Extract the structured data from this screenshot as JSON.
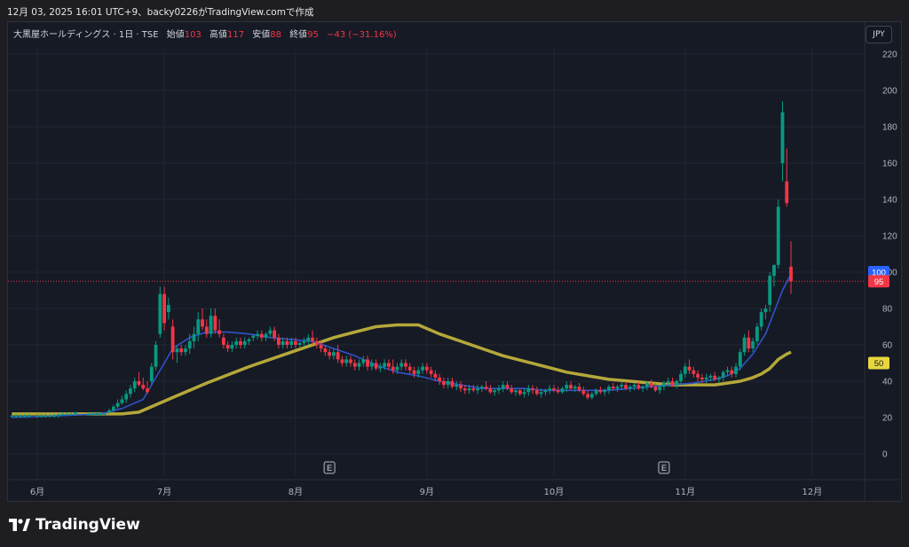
{
  "caption": "12月 03, 2025 16:01 UTC+9、backy0226がTradingView.comで作成",
  "legend": {
    "symbol": "大黒屋ホールディングス · 1日 · TSE",
    "open_label": "始値",
    "open": "103",
    "high_label": "高値",
    "high": "117",
    "low_label": "安値",
    "low": "88",
    "close_label": "終値",
    "close": "95",
    "change": "−43 (−31.16%)"
  },
  "currency_button": "JPY",
  "brand": {
    "name": "TradingView",
    "icon": "tradingview-logo-icon"
  },
  "colors": {
    "up": "#089981",
    "down": "#f23645",
    "ma_short": "#2f52c9",
    "ma_long": "#b5a83a",
    "background": "#161a25"
  },
  "chart_data": {
    "type": "candlestick",
    "y_axis": {
      "min": 0,
      "max": 220,
      "ticks": [
        "0",
        "20",
        "40",
        "60",
        "80",
        "100",
        "120",
        "140",
        "160",
        "180",
        "200",
        "220"
      ]
    },
    "x_axis": {
      "ticks": [
        {
          "label": "6月",
          "day": 0
        },
        {
          "label": "7月",
          "day": 30
        },
        {
          "label": "8月",
          "day": 61
        },
        {
          "label": "9月",
          "day": 92
        },
        {
          "label": "10月",
          "day": 122
        },
        {
          "label": "11月",
          "day": 153
        },
        {
          "label": "12月",
          "day": 183
        }
      ]
    },
    "last_price_line": 95,
    "price_labels": [
      {
        "value": "100",
        "color": "#2962ff"
      },
      {
        "value": "95",
        "color": "#f23645"
      },
      {
        "value": "50",
        "color": "#e8d640"
      }
    ],
    "earnings_markers": [
      {
        "label": "E",
        "day": 69
      },
      {
        "label": "E",
        "day": 148
      }
    ],
    "candles": [
      [
        -6,
        21,
        22,
        20,
        21
      ],
      [
        -5,
        21,
        22,
        20,
        21
      ],
      [
        -4,
        21,
        22,
        20,
        21
      ],
      [
        -3,
        21,
        22,
        20,
        21
      ],
      [
        -2,
        21,
        22,
        20,
        21
      ],
      [
        0,
        21,
        22,
        20,
        21
      ],
      [
        1,
        21,
        22,
        20,
        21
      ],
      [
        2,
        21,
        22,
        20,
        21
      ],
      [
        3,
        21,
        22,
        20,
        21
      ],
      [
        4,
        21,
        22,
        20,
        21
      ],
      [
        5,
        21,
        22,
        20,
        22
      ],
      [
        6,
        22,
        23,
        21,
        22
      ],
      [
        7,
        22,
        23,
        21,
        22
      ],
      [
        8,
        22,
        23,
        21,
        22
      ],
      [
        9,
        22,
        23,
        21,
        23
      ],
      [
        12,
        22,
        23,
        21,
        22
      ],
      [
        13,
        22,
        23,
        21,
        22
      ],
      [
        14,
        22,
        23,
        21,
        22
      ],
      [
        15,
        22,
        23,
        21,
        22
      ],
      [
        16,
        22,
        23,
        21,
        22
      ],
      [
        17,
        23,
        25,
        22,
        24
      ],
      [
        18,
        24,
        27,
        23,
        26
      ],
      [
        19,
        26,
        30,
        25,
        28
      ],
      [
        20,
        28,
        32,
        27,
        30
      ],
      [
        21,
        30,
        35,
        28,
        33
      ],
      [
        22,
        33,
        38,
        31,
        36
      ],
      [
        23,
        36,
        42,
        34,
        40
      ],
      [
        24,
        40,
        45,
        37,
        38
      ],
      [
        25,
        38,
        42,
        35,
        36
      ],
      [
        26,
        36,
        40,
        33,
        34
      ],
      [
        27,
        40,
        50,
        38,
        48
      ],
      [
        28,
        48,
        62,
        46,
        60
      ],
      [
        29,
        66,
        92,
        64,
        88
      ],
      [
        30,
        88,
        92,
        68,
        72
      ],
      [
        31,
        78,
        86,
        74,
        82
      ],
      [
        32,
        70,
        74,
        52,
        56
      ],
      [
        33,
        56,
        60,
        50,
        58
      ],
      [
        34,
        58,
        60,
        54,
        56
      ],
      [
        35,
        56,
        60,
        54,
        58
      ],
      [
        36,
        58,
        66,
        55,
        62
      ],
      [
        37,
        62,
        70,
        58,
        66
      ],
      [
        38,
        66,
        78,
        62,
        74
      ],
      [
        39,
        74,
        80,
        68,
        70
      ],
      [
        40,
        70,
        74,
        64,
        66
      ],
      [
        41,
        66,
        80,
        64,
        76
      ],
      [
        42,
        76,
        80,
        66,
        68
      ],
      [
        43,
        68,
        74,
        64,
        66
      ],
      [
        44,
        64,
        66,
        58,
        60
      ],
      [
        45,
        60,
        62,
        56,
        58
      ],
      [
        46,
        58,
        62,
        56,
        60
      ],
      [
        47,
        60,
        64,
        58,
        62
      ],
      [
        48,
        62,
        64,
        58,
        60
      ],
      [
        49,
        60,
        64,
        58,
        62
      ],
      [
        50,
        62,
        64,
        60,
        63
      ],
      [
        51,
        64,
        66,
        62,
        65
      ],
      [
        52,
        65,
        68,
        63,
        66
      ],
      [
        53,
        66,
        68,
        62,
        64
      ],
      [
        54,
        64,
        67,
        62,
        66
      ],
      [
        55,
        66,
        70,
        64,
        68
      ],
      [
        56,
        68,
        70,
        62,
        64
      ],
      [
        57,
        64,
        66,
        58,
        60
      ],
      [
        58,
        60,
        64,
        58,
        62
      ],
      [
        59,
        62,
        64,
        58,
        60
      ],
      [
        60,
        60,
        64,
        58,
        62
      ],
      [
        61,
        62,
        64,
        58,
        60
      ],
      [
        62,
        60,
        62,
        58,
        61
      ],
      [
        63,
        61,
        64,
        59,
        62
      ],
      [
        64,
        62,
        66,
        60,
        64
      ],
      [
        65,
        64,
        68,
        60,
        62
      ],
      [
        66,
        62,
        64,
        58,
        60
      ],
      [
        67,
        60,
        62,
        56,
        58
      ],
      [
        68,
        58,
        60,
        54,
        56
      ],
      [
        69,
        56,
        58,
        52,
        54
      ],
      [
        70,
        54,
        58,
        52,
        56
      ],
      [
        71,
        56,
        60,
        50,
        52
      ],
      [
        72,
        52,
        54,
        48,
        50
      ],
      [
        73,
        50,
        54,
        48,
        52
      ],
      [
        74,
        52,
        54,
        48,
        50
      ],
      [
        75,
        50,
        52,
        46,
        48
      ],
      [
        76,
        48,
        52,
        46,
        50
      ],
      [
        77,
        50,
        54,
        48,
        52
      ],
      [
        78,
        52,
        54,
        46,
        48
      ],
      [
        79,
        48,
        52,
        46,
        50
      ],
      [
        80,
        50,
        52,
        46,
        47
      ],
      [
        81,
        47,
        50,
        45,
        48
      ],
      [
        82,
        48,
        52,
        46,
        50
      ],
      [
        83,
        50,
        52,
        46,
        48
      ],
      [
        84,
        48,
        52,
        44,
        46
      ],
      [
        85,
        46,
        50,
        44,
        48
      ],
      [
        86,
        48,
        52,
        46,
        50
      ],
      [
        87,
        50,
        52,
        46,
        48
      ],
      [
        88,
        48,
        50,
        44,
        46
      ],
      [
        89,
        46,
        48,
        42,
        44
      ],
      [
        90,
        44,
        48,
        42,
        46
      ],
      [
        91,
        46,
        50,
        44,
        48
      ],
      [
        92,
        48,
        50,
        44,
        46
      ],
      [
        93,
        46,
        48,
        42,
        44
      ],
      [
        94,
        44,
        46,
        40,
        42
      ],
      [
        95,
        42,
        44,
        38,
        40
      ],
      [
        96,
        40,
        42,
        36,
        38
      ],
      [
        97,
        38,
        42,
        36,
        40
      ],
      [
        98,
        40,
        42,
        36,
        37
      ],
      [
        99,
        37,
        40,
        35,
        38
      ],
      [
        100,
        38,
        40,
        34,
        36
      ],
      [
        101,
        36,
        38,
        33,
        35
      ],
      [
        102,
        35,
        38,
        33,
        36
      ],
      [
        103,
        36,
        38,
        34,
        35
      ],
      [
        104,
        35,
        38,
        33,
        36
      ],
      [
        105,
        36,
        38,
        34,
        37
      ],
      [
        106,
        37,
        40,
        35,
        36
      ],
      [
        107,
        36,
        38,
        33,
        34
      ],
      [
        108,
        34,
        36,
        32,
        35
      ],
      [
        109,
        35,
        38,
        33,
        36
      ],
      [
        110,
        36,
        40,
        34,
        38
      ],
      [
        111,
        38,
        40,
        35,
        36
      ],
      [
        112,
        36,
        38,
        33,
        34
      ],
      [
        113,
        34,
        36,
        32,
        35
      ],
      [
        114,
        35,
        36,
        32,
        33
      ],
      [
        115,
        33,
        36,
        31,
        34
      ],
      [
        116,
        34,
        38,
        32,
        36
      ],
      [
        117,
        36,
        38,
        33,
        35
      ],
      [
        118,
        35,
        37,
        32,
        33
      ],
      [
        119,
        33,
        36,
        31,
        34
      ],
      [
        120,
        34,
        36,
        32,
        35
      ],
      [
        121,
        35,
        38,
        33,
        36
      ],
      [
        122,
        36,
        38,
        34,
        35
      ],
      [
        123,
        35,
        37,
        33,
        34
      ],
      [
        124,
        34,
        37,
        33,
        36
      ],
      [
        125,
        36,
        40,
        34,
        38
      ],
      [
        126,
        38,
        40,
        35,
        36
      ],
      [
        127,
        36,
        38,
        34,
        37
      ],
      [
        128,
        37,
        39,
        34,
        35
      ],
      [
        129,
        35,
        37,
        32,
        33
      ],
      [
        130,
        33,
        35,
        30,
        31
      ],
      [
        131,
        31,
        34,
        30,
        33
      ],
      [
        132,
        33,
        36,
        32,
        35
      ],
      [
        133,
        35,
        37,
        33,
        34
      ],
      [
        134,
        34,
        36,
        32,
        35
      ],
      [
        135,
        35,
        38,
        33,
        37
      ],
      [
        136,
        37,
        39,
        35,
        36
      ],
      [
        137,
        36,
        38,
        34,
        37
      ],
      [
        138,
        37,
        40,
        35,
        38
      ],
      [
        139,
        38,
        40,
        35,
        36
      ],
      [
        140,
        36,
        38,
        34,
        37
      ],
      [
        141,
        37,
        39,
        35,
        38
      ],
      [
        142,
        38,
        40,
        35,
        36
      ],
      [
        143,
        36,
        38,
        34,
        37
      ],
      [
        144,
        37,
        40,
        35,
        39
      ],
      [
        145,
        39,
        41,
        36,
        37
      ],
      [
        146,
        37,
        39,
        34,
        35
      ],
      [
        147,
        35,
        38,
        33,
        37
      ],
      [
        148,
        37,
        40,
        35,
        39
      ],
      [
        149,
        39,
        42,
        37,
        40
      ],
      [
        150,
        40,
        42,
        37,
        38
      ],
      [
        151,
        38,
        41,
        36,
        40
      ],
      [
        152,
        40,
        46,
        38,
        44
      ],
      [
        153,
        44,
        50,
        42,
        48
      ],
      [
        154,
        48,
        52,
        44,
        46
      ],
      [
        155,
        46,
        48,
        42,
        44
      ],
      [
        156,
        44,
        46,
        40,
        42
      ],
      [
        157,
        42,
        44,
        39,
        41
      ],
      [
        158,
        41,
        44,
        39,
        42
      ],
      [
        159,
        42,
        44,
        40,
        43
      ],
      [
        160,
        43,
        45,
        40,
        41
      ],
      [
        161,
        41,
        43,
        39,
        42
      ],
      [
        162,
        42,
        46,
        40,
        45
      ],
      [
        163,
        45,
        48,
        43,
        46
      ],
      [
        164,
        46,
        48,
        42,
        44
      ],
      [
        165,
        44,
        50,
        42,
        48
      ],
      [
        166,
        48,
        58,
        46,
        56
      ],
      [
        167,
        56,
        66,
        54,
        64
      ],
      [
        168,
        64,
        68,
        56,
        58
      ],
      [
        169,
        58,
        64,
        56,
        62
      ],
      [
        170,
        62,
        72,
        60,
        70
      ],
      [
        171,
        70,
        80,
        68,
        78
      ],
      [
        172,
        78,
        82,
        74,
        80
      ],
      [
        173,
        82,
        100,
        78,
        98
      ],
      [
        174,
        98,
        104,
        92,
        104
      ],
      [
        175,
        104,
        140,
        102,
        136
      ],
      [
        176,
        160,
        194,
        150,
        188
      ],
      [
        177,
        150,
        168,
        136,
        138
      ],
      [
        178,
        103,
        117,
        88,
        95
      ]
    ],
    "ma_short": [
      [
        -6,
        20
      ],
      [
        5,
        21
      ],
      [
        15,
        22
      ],
      [
        20,
        25
      ],
      [
        25,
        30
      ],
      [
        28,
        42
      ],
      [
        32,
        58
      ],
      [
        36,
        64
      ],
      [
        40,
        67
      ],
      [
        45,
        67
      ],
      [
        50,
        66
      ],
      [
        55,
        64
      ],
      [
        60,
        63
      ],
      [
        65,
        62
      ],
      [
        70,
        58
      ],
      [
        75,
        54
      ],
      [
        80,
        49
      ],
      [
        85,
        45
      ],
      [
        90,
        43
      ],
      [
        95,
        40
      ],
      [
        100,
        38
      ],
      [
        105,
        36
      ],
      [
        110,
        36
      ],
      [
        115,
        36
      ],
      [
        120,
        35
      ],
      [
        125,
        35
      ],
      [
        130,
        35
      ],
      [
        135,
        35
      ],
      [
        140,
        36
      ],
      [
        145,
        37
      ],
      [
        150,
        38
      ],
      [
        155,
        39
      ],
      [
        160,
        41
      ],
      [
        163,
        43
      ],
      [
        166,
        47
      ],
      [
        169,
        55
      ],
      [
        172,
        66
      ],
      [
        174,
        78
      ],
      [
        176,
        90
      ],
      [
        178,
        99
      ]
    ],
    "ma_long": [
      [
        -6,
        22
      ],
      [
        10,
        22
      ],
      [
        20,
        22
      ],
      [
        24,
        23
      ],
      [
        28,
        27
      ],
      [
        32,
        31
      ],
      [
        40,
        39
      ],
      [
        50,
        48
      ],
      [
        60,
        56
      ],
      [
        70,
        64
      ],
      [
        75,
        67
      ],
      [
        80,
        70
      ],
      [
        85,
        71
      ],
      [
        90,
        71
      ],
      [
        95,
        66
      ],
      [
        100,
        62
      ],
      [
        105,
        58
      ],
      [
        110,
        54
      ],
      [
        115,
        51
      ],
      [
        120,
        48
      ],
      [
        125,
        45
      ],
      [
        130,
        43
      ],
      [
        135,
        41
      ],
      [
        140,
        40
      ],
      [
        145,
        39
      ],
      [
        150,
        38
      ],
      [
        155,
        38
      ],
      [
        160,
        38
      ],
      [
        163,
        39
      ],
      [
        166,
        40
      ],
      [
        169,
        42
      ],
      [
        171,
        44
      ],
      [
        173,
        47
      ],
      [
        175,
        52
      ],
      [
        177,
        55
      ],
      [
        178,
        56
      ]
    ]
  }
}
